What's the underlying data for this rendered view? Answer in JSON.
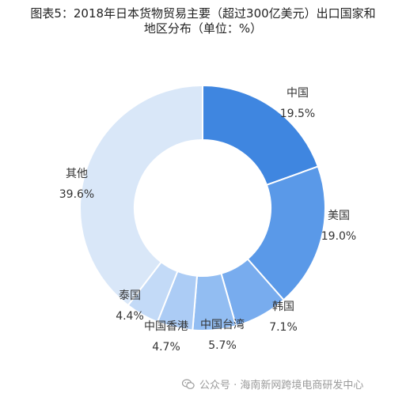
{
  "title_lines": [
    "图表5：2018年日本货物贸易主要（超过300亿美元）出口国家和",
    "地区分布（单位：%）"
  ],
  "watermark": {
    "text": "公众号 · 海南新网跨境电商研发中心",
    "icon": "wechat-icon"
  },
  "chart_data": {
    "type": "pie",
    "title": "图表5：2018年日本货物贸易主要（超过300亿美元）出口国家和地区分布（单位：%）",
    "donut": true,
    "series": [
      {
        "name": "中国",
        "value": 19.5,
        "label": "19.5%",
        "color": "#3f86e0"
      },
      {
        "name": "美国",
        "value": 19.0,
        "label": "19.0%",
        "color": "#5a99e8"
      },
      {
        "name": "韩国",
        "value": 7.1,
        "label": "7.1%",
        "color": "#78acee"
      },
      {
        "name": "中国台湾",
        "value": 5.7,
        "label": "5.7%",
        "color": "#92bdf2"
      },
      {
        "name": "中国香港",
        "value": 4.7,
        "label": "4.7%",
        "color": "#acccf5"
      },
      {
        "name": "泰国",
        "value": 4.4,
        "label": "4.4%",
        "color": "#c3daf7"
      },
      {
        "name": "其他",
        "value": 39.6,
        "label": "39.6%",
        "color": "#d9e7f8"
      }
    ]
  }
}
